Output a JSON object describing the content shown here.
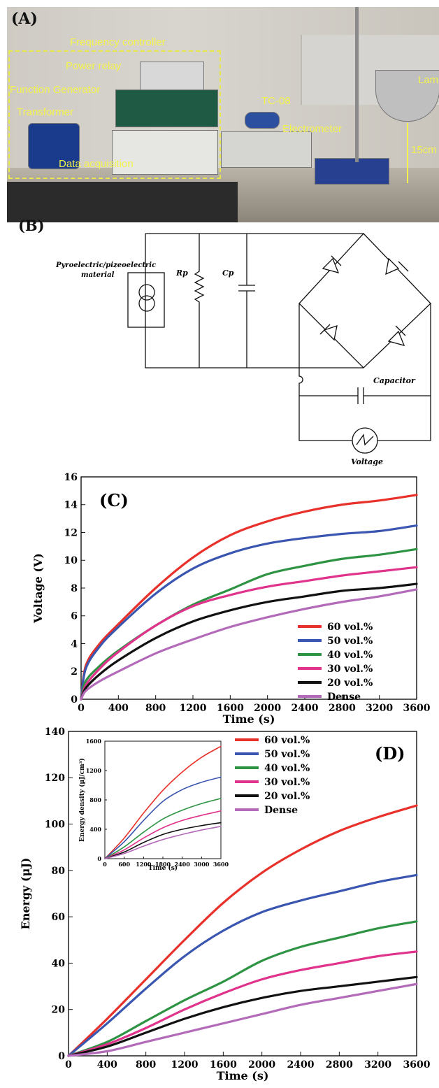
{
  "panelA": {
    "tag": "(A)",
    "labels": {
      "frequency_controller": "Frequency controller",
      "power_relay": "Power relay",
      "function_generator": "Function Generator",
      "transformer": "Transformer",
      "data_acquisition": "Data acquisition",
      "tc08": "TC-08",
      "electrometer": "Electrometer",
      "lamp": "Lam",
      "distance": "15cm"
    }
  },
  "panelB": {
    "tag": "(B)",
    "labels": {
      "material": [
        "Pyroelectric/pizeoelectric",
        "material"
      ],
      "rp": "Rp",
      "cp": "Cp",
      "capacitor": "Capacitor",
      "voltage": "Voltage"
    }
  },
  "chart_data": [
    {
      "type": "line",
      "tag": "(C)",
      "xlabel": "Time (s)",
      "ylabel": "Voltage (V)",
      "xlim": [
        0,
        3600
      ],
      "ylim": [
        0,
        16
      ],
      "xticks": [
        "0",
        "400",
        "800",
        "1200",
        "1600",
        "2000",
        "2400",
        "2800",
        "3200",
        "3600"
      ],
      "yticks": [
        "0",
        "2",
        "4",
        "6",
        "8",
        "10",
        "12",
        "14",
        "16"
      ],
      "legend_position": "bottom-right",
      "x": [
        0,
        50,
        200,
        400,
        800,
        1200,
        1600,
        2000,
        2400,
        2800,
        3200,
        3600
      ],
      "series": [
        {
          "name": "60 vol.%",
          "color": "#e8312a",
          "values": [
            0,
            2.4,
            4.0,
            5.4,
            8.0,
            10.2,
            11.8,
            12.8,
            13.5,
            14.0,
            14.3,
            14.7
          ]
        },
        {
          "name": "50 vol.%",
          "color": "#3a56b0",
          "values": [
            0,
            2.2,
            3.8,
            5.2,
            7.6,
            9.4,
            10.5,
            11.2,
            11.6,
            11.9,
            12.1,
            12.5
          ]
        },
        {
          "name": "40 vol.%",
          "color": "#2e9444",
          "values": [
            0,
            1.3,
            2.4,
            3.5,
            5.3,
            6.8,
            7.9,
            9.0,
            9.6,
            10.1,
            10.4,
            10.8
          ]
        },
        {
          "name": "30 vol.%",
          "color": "#e0338c",
          "values": [
            0,
            1.0,
            2.2,
            3.4,
            5.3,
            6.7,
            7.5,
            8.1,
            8.5,
            8.9,
            9.2,
            9.5
          ]
        },
        {
          "name": "20 vol.%",
          "color": "#111111",
          "values": [
            0,
            0.8,
            1.8,
            2.8,
            4.4,
            5.6,
            6.4,
            7.0,
            7.4,
            7.8,
            8.0,
            8.3
          ]
        },
        {
          "name": "Dense",
          "color": "#b36ab8",
          "values": [
            0,
            0.6,
            1.3,
            2.0,
            3.3,
            4.3,
            5.2,
            5.9,
            6.5,
            7.0,
            7.4,
            7.9
          ]
        }
      ]
    },
    {
      "type": "line",
      "tag": "(D)",
      "xlabel": "Time (s)",
      "ylabel": "Energy (μJ)",
      "xlim": [
        0,
        3600
      ],
      "ylim": [
        0,
        140
      ],
      "xticks": [
        "0",
        "400",
        "800",
        "1200",
        "1600",
        "2000",
        "2400",
        "2800",
        "3200",
        "3600"
      ],
      "yticks": [
        "0",
        "20",
        "40",
        "60",
        "80",
        "100",
        "120",
        "140"
      ],
      "legend_position": "top-right",
      "x": [
        0,
        400,
        800,
        1200,
        1600,
        2000,
        2400,
        2800,
        3200,
        3600
      ],
      "series": [
        {
          "name": "60 vol.%",
          "color": "#e8312a",
          "values": [
            0,
            16,
            33,
            50,
            66,
            79,
            89,
            97,
            103,
            108
          ]
        },
        {
          "name": "50 vol.%",
          "color": "#3a56b0",
          "values": [
            0,
            14,
            29,
            43,
            54,
            62,
            67,
            71,
            75,
            78
          ]
        },
        {
          "name": "40 vol.%",
          "color": "#2e9444",
          "values": [
            0,
            6,
            15,
            24,
            32,
            41,
            47,
            51,
            55,
            58
          ]
        },
        {
          "name": "30 vol.%",
          "color": "#e0338c",
          "values": [
            0,
            5,
            12,
            20,
            27,
            33,
            37,
            40,
            43,
            45
          ]
        },
        {
          "name": "20 vol.%",
          "color": "#111111",
          "values": [
            0,
            4,
            10,
            16,
            21,
            25,
            28,
            30,
            32,
            34
          ]
        },
        {
          "name": "Dense",
          "color": "#b36ab8",
          "values": [
            0,
            2,
            6,
            10,
            14,
            18,
            22,
            25,
            28,
            31
          ]
        }
      ],
      "inset": {
        "type": "line",
        "xlabel": "Time (s)",
        "ylabel": "Energy density (μJ/cm³)",
        "xlim": [
          0,
          3600
        ],
        "ylim": [
          0,
          1600
        ],
        "xticks": [
          "0",
          "600",
          "1200",
          "1800",
          "2400",
          "3000",
          "3600"
        ],
        "yticks": [
          "0",
          "400",
          "800",
          "1200",
          "1600"
        ],
        "x": [
          0,
          600,
          1200,
          1800,
          2400,
          3000,
          3600
        ],
        "series": [
          {
            "color": "#e8312a",
            "values": [
              0,
              280,
              620,
              930,
              1180,
              1380,
              1530
            ]
          },
          {
            "color": "#3a56b0",
            "values": [
              0,
              230,
              520,
              780,
              940,
              1040,
              1110
            ]
          },
          {
            "color": "#2e9444",
            "values": [
              0,
              160,
              360,
              540,
              660,
              750,
              820
            ]
          },
          {
            "color": "#e0338c",
            "values": [
              0,
              120,
              280,
              420,
              520,
              590,
              650
            ]
          },
          {
            "color": "#111111",
            "values": [
              0,
              90,
              220,
              330,
              400,
              450,
              490
            ]
          },
          {
            "color": "#b36ab8",
            "values": [
              0,
              70,
              170,
              260,
              330,
              390,
              440
            ]
          }
        ]
      }
    }
  ]
}
